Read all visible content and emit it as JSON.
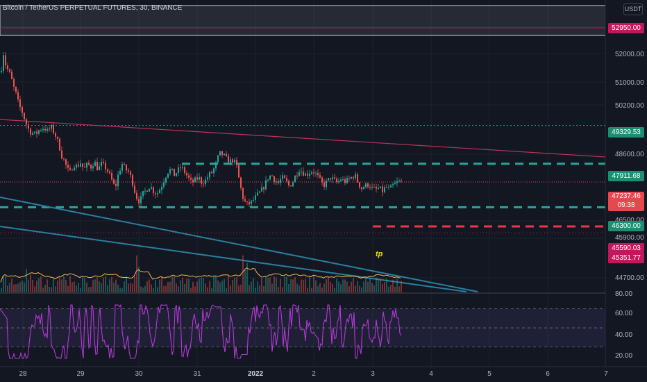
{
  "header": {
    "title": "Bitcoin / TetherUS PERPETUAL FUTURES, 30, BINANCE",
    "currency": "USDT"
  },
  "colors": {
    "background": "#131722",
    "up": "#26a69a",
    "down": "#ef5350",
    "level_green": "#26a69a",
    "level_red": "#f23645",
    "trendline_red": "#b7365a",
    "trendline_blue": "#2a7fa0",
    "rsi_line": "#b33ad8",
    "volume_ma": "#f5b55a"
  },
  "chart_data": {
    "type": "candlestick",
    "x": [
      "28",
      "29",
      "30",
      "31",
      "2022",
      "2",
      "3",
      "4",
      "5",
      "6",
      "7"
    ],
    "price_axis_labels": [
      52000,
      51000,
      50200,
      49300,
      48600,
      47900,
      47200,
      46500,
      45900,
      45300,
      44700
    ],
    "ylim": [
      44400,
      53700
    ],
    "levels": [
      {
        "value": 52950.0,
        "label": "52950.00",
        "style": "zone-box"
      },
      {
        "value": 49329.53,
        "label": "49329.53",
        "style": "dotted-green"
      },
      {
        "value": 47911.68,
        "label": "47911.68",
        "style": "dashed-green"
      },
      {
        "value": 46300.0,
        "label": "46300.00",
        "style": "dashed-green"
      },
      {
        "value": 45590.03,
        "label": "45590.03",
        "style": "dashed-red"
      },
      {
        "value": 45351.77,
        "label": "45351.77",
        "style": "dotted-red"
      }
    ],
    "current_price": {
      "value": 47237.46,
      "label": "47237.46",
      "countdown": "09:38"
    },
    "annotations": [
      {
        "text": "tp"
      }
    ],
    "price_path": [
      [
        0,
        51300
      ],
      [
        3,
        51800
      ],
      [
        4,
        52000
      ],
      [
        6,
        51650
      ],
      [
        10,
        51400
      ],
      [
        14,
        51200
      ],
      [
        18,
        50800
      ],
      [
        22,
        50500
      ],
      [
        26,
        50100
      ],
      [
        30,
        49900
      ],
      [
        34,
        49600
      ],
      [
        38,
        49300
      ],
      [
        42,
        49100
      ],
      [
        46,
        49050
      ],
      [
        50,
        49000
      ],
      [
        55,
        49150
      ],
      [
        60,
        49250
      ],
      [
        64,
        49200
      ],
      [
        68,
        49100
      ],
      [
        72,
        49300
      ],
      [
        76,
        49100
      ],
      [
        80,
        48900
      ],
      [
        84,
        48600
      ],
      [
        88,
        48200
      ],
      [
        92,
        48000
      ],
      [
        96,
        47700
      ],
      [
        100,
        47600
      ],
      [
        105,
        47900
      ],
      [
        110,
        47800
      ],
      [
        115,
        47950
      ],
      [
        120,
        47700
      ],
      [
        125,
        47900
      ],
      [
        130,
        47800
      ],
      [
        135,
        48000
      ],
      [
        140,
        47700
      ],
      [
        145,
        47900
      ],
      [
        150,
        47800
      ],
      [
        155,
        47600
      ],
      [
        160,
        47300
      ],
      [
        165,
        47000
      ],
      [
        170,
        47600
      ],
      [
        175,
        47900
      ],
      [
        180,
        47700
      ],
      [
        185,
        47600
      ],
      [
        190,
        47200
      ],
      [
        195,
        46700
      ],
      [
        200,
        46500
      ],
      [
        205,
        46800
      ],
      [
        210,
        46950
      ],
      [
        215,
        47100
      ],
      [
        220,
        46900
      ],
      [
        225,
        46800
      ],
      [
        230,
        47000
      ],
      [
        235,
        47300
      ],
      [
        240,
        47600
      ],
      [
        245,
        47700
      ],
      [
        250,
        47500
      ],
      [
        255,
        47650
      ],
      [
        260,
        47800
      ],
      [
        265,
        47600
      ],
      [
        270,
        47400
      ],
      [
        275,
        47200
      ],
      [
        280,
        47300
      ],
      [
        285,
        47400
      ],
      [
        290,
        47200
      ],
      [
        295,
        47300
      ],
      [
        300,
        47500
      ],
      [
        305,
        47600
      ],
      [
        310,
        47900
      ],
      [
        315,
        48300
      ],
      [
        320,
        48250
      ],
      [
        325,
        48100
      ],
      [
        330,
        48000
      ],
      [
        335,
        48050
      ],
      [
        340,
        47800
      ],
      [
        345,
        47100
      ],
      [
        350,
        46550
      ],
      [
        355,
        46400
      ],
      [
        360,
        46450
      ],
      [
        365,
        46600
      ],
      [
        370,
        46750
      ],
      [
        375,
        46900
      ],
      [
        380,
        47100
      ],
      [
        385,
        47400
      ],
      [
        390,
        47500
      ],
      [
        395,
        47300
      ],
      [
        400,
        47200
      ],
      [
        405,
        47400
      ],
      [
        410,
        47300
      ],
      [
        415,
        47100
      ],
      [
        420,
        47200
      ],
      [
        425,
        47500
      ],
      [
        430,
        47700
      ],
      [
        435,
        47600
      ],
      [
        440,
        47500
      ],
      [
        445,
        47600
      ],
      [
        450,
        47650
      ],
      [
        455,
        47500
      ],
      [
        460,
        47300
      ],
      [
        465,
        47100
      ],
      [
        470,
        47250
      ],
      [
        475,
        47400
      ],
      [
        480,
        47300
      ],
      [
        485,
        47200
      ],
      [
        490,
        47350
      ],
      [
        495,
        47250
      ],
      [
        500,
        47300
      ],
      [
        505,
        47400
      ],
      [
        510,
        47500
      ],
      [
        515,
        47200
      ],
      [
        520,
        47000
      ],
      [
        525,
        47100
      ],
      [
        530,
        47150
      ],
      [
        535,
        47000
      ],
      [
        540,
        46950
      ],
      [
        545,
        47000
      ],
      [
        550,
        46900
      ],
      [
        555,
        47050
      ],
      [
        560,
        46950
      ],
      [
        565,
        47100
      ],
      [
        570,
        47200
      ],
      [
        575,
        47250
      ],
      [
        579,
        47237
      ]
    ],
    "rsi": {
      "ylim": [
        10,
        85
      ],
      "axis_labels": [
        80.0,
        60.0,
        40.0,
        20.0
      ],
      "bands": [
        30,
        50,
        70
      ]
    }
  }
}
